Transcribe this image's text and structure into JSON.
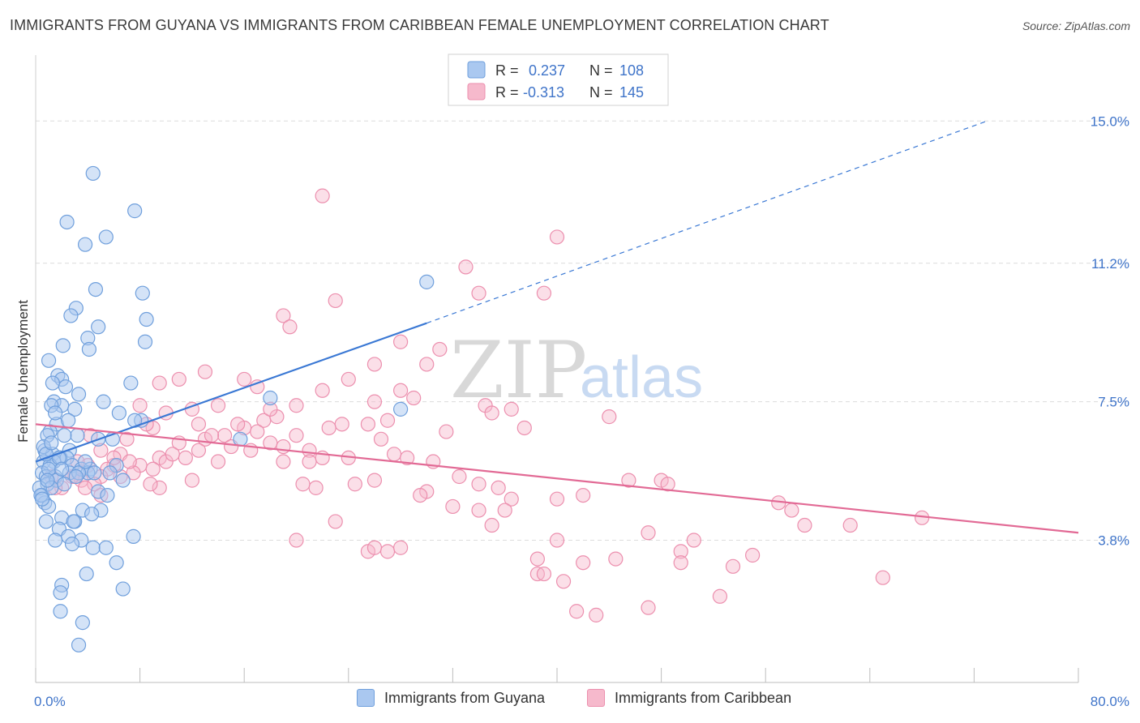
{
  "title": "IMMIGRANTS FROM GUYANA VS IMMIGRANTS FROM CARIBBEAN FEMALE UNEMPLOYMENT CORRELATION CHART",
  "source": "Source: ZipAtlas.com",
  "watermark": {
    "zip": "ZIP",
    "atlas": "atlas"
  },
  "colors": {
    "blue_fill": "#aac8f0",
    "blue_stroke": "#6f9fdc",
    "blue_line": "#3a78d4",
    "pink_fill": "#f6b9cc",
    "pink_stroke": "#ec8fae",
    "pink_line": "#e26a95",
    "axis_text": "#3f74c9",
    "grid": "#dcdcdc"
  },
  "legend": {
    "r_label": "R =",
    "n_label": "N =",
    "rows": [
      {
        "r": "0.237",
        "n": "108"
      },
      {
        "r": "-0.313",
        "n": "145"
      }
    ]
  },
  "chart_data": {
    "type": "scatter",
    "title": "IMMIGRANTS FROM GUYANA VS IMMIGRANTS FROM CARIBBEAN FEMALE UNEMPLOYMENT CORRELATION CHART",
    "ylabel": "Female Unemployment",
    "x_tick_labels": [
      "0.0%",
      "80.0%"
    ],
    "y_tick_labels": [
      "15.0%",
      "11.2%",
      "7.5%",
      "3.8%"
    ],
    "y_ticks": [
      15.0,
      11.2,
      7.5,
      3.8
    ],
    "xlim": [
      0,
      80
    ],
    "ylim": [
      0,
      16.5
    ],
    "grid": true,
    "legend_position": "top-center",
    "series": [
      {
        "name": "Immigrants from Guyana",
        "color": "blue",
        "trend": {
          "x": [
            0,
            30
          ],
          "y": [
            5.9,
            9.6
          ],
          "dashed_to": {
            "x": 73,
            "y": 15.0
          }
        },
        "points": [
          [
            4.4,
            13.6
          ],
          [
            7.6,
            12.6
          ],
          [
            2.4,
            12.3
          ],
          [
            5.4,
            11.9
          ],
          [
            3.8,
            11.7
          ],
          [
            4.6,
            10.5
          ],
          [
            8.2,
            10.4
          ],
          [
            3.1,
            10.0
          ],
          [
            2.7,
            9.8
          ],
          [
            8.5,
            9.7
          ],
          [
            4.8,
            9.5
          ],
          [
            4.0,
            9.2
          ],
          [
            8.4,
            9.1
          ],
          [
            2.1,
            9.0
          ],
          [
            4.1,
            8.9
          ],
          [
            1.0,
            8.6
          ],
          [
            1.7,
            8.2
          ],
          [
            2.0,
            8.1
          ],
          [
            7.3,
            8.0
          ],
          [
            1.3,
            8.0
          ],
          [
            2.3,
            7.9
          ],
          [
            3.3,
            7.7
          ],
          [
            1.4,
            7.5
          ],
          [
            5.2,
            7.5
          ],
          [
            18.0,
            7.6
          ],
          [
            2.0,
            7.4
          ],
          [
            1.2,
            7.4
          ],
          [
            3.0,
            7.3
          ],
          [
            28.0,
            7.3
          ],
          [
            6.4,
            7.2
          ],
          [
            8.1,
            7.0
          ],
          [
            7.6,
            7.0
          ],
          [
            1.6,
            6.9
          ],
          [
            1.1,
            6.7
          ],
          [
            0.9,
            6.6
          ],
          [
            3.2,
            6.6
          ],
          [
            4.8,
            6.5
          ],
          [
            5.9,
            6.5
          ],
          [
            15.7,
            6.5
          ],
          [
            0.7,
            6.2
          ],
          [
            2.6,
            6.2
          ],
          [
            1.3,
            6.1
          ],
          [
            1.9,
            6.0
          ],
          [
            2.4,
            6.0
          ],
          [
            1.4,
            5.9
          ],
          [
            0.6,
            5.9
          ],
          [
            1.1,
            5.8
          ],
          [
            2.8,
            5.8
          ],
          [
            3.5,
            5.7
          ],
          [
            4.2,
            5.7
          ],
          [
            6.2,
            5.8
          ],
          [
            0.5,
            5.6
          ],
          [
            4.0,
            5.6
          ],
          [
            2.6,
            5.6
          ],
          [
            0.8,
            5.5
          ],
          [
            1.5,
            5.5
          ],
          [
            3.3,
            5.6
          ],
          [
            6.7,
            5.4
          ],
          [
            0.9,
            5.3
          ],
          [
            1.6,
            5.4
          ],
          [
            4.8,
            5.1
          ],
          [
            0.5,
            5.0
          ],
          [
            5.5,
            5.0
          ],
          [
            0.7,
            4.8
          ],
          [
            1.0,
            4.7
          ],
          [
            5.0,
            4.6
          ],
          [
            3.6,
            4.6
          ],
          [
            4.3,
            4.5
          ],
          [
            2.0,
            4.4
          ],
          [
            0.8,
            4.3
          ],
          [
            3.0,
            4.3
          ],
          [
            1.8,
            4.1
          ],
          [
            2.5,
            3.9
          ],
          [
            7.5,
            3.9
          ],
          [
            3.5,
            3.8
          ],
          [
            1.5,
            3.8
          ],
          [
            2.8,
            3.7
          ],
          [
            4.4,
            3.6
          ],
          [
            5.4,
            3.6
          ],
          [
            6.2,
            3.2
          ],
          [
            3.9,
            2.9
          ],
          [
            2.0,
            2.6
          ],
          [
            1.9,
            2.4
          ],
          [
            6.7,
            2.5
          ],
          [
            1.9,
            1.9
          ],
          [
            3.6,
            1.6
          ],
          [
            3.3,
            1.0
          ],
          [
            1.2,
            5.2
          ],
          [
            2.2,
            5.3
          ],
          [
            0.3,
            5.2
          ],
          [
            0.4,
            5.0
          ],
          [
            2.9,
            4.3
          ],
          [
            1.0,
            5.7
          ],
          [
            3.8,
            5.9
          ],
          [
            0.6,
            6.3
          ],
          [
            1.8,
            6.0
          ],
          [
            4.5,
            5.6
          ],
          [
            2.2,
            6.6
          ],
          [
            0.9,
            5.4
          ],
          [
            3.1,
            5.5
          ],
          [
            1.5,
            7.2
          ],
          [
            2.5,
            7.0
          ],
          [
            0.8,
            6.1
          ],
          [
            1.2,
            6.4
          ],
          [
            5.7,
            5.6
          ],
          [
            2.0,
            5.7
          ],
          [
            0.5,
            4.9
          ],
          [
            30.0,
            10.7
          ]
        ]
      },
      {
        "name": "Immigrants from Caribbean",
        "color": "pink",
        "trend": {
          "x": [
            0,
            80
          ],
          "y": [
            6.9,
            4.0
          ]
        },
        "points": [
          [
            22.0,
            13.0
          ],
          [
            40.0,
            11.9
          ],
          [
            33.0,
            11.1
          ],
          [
            39.0,
            10.4
          ],
          [
            34.0,
            10.4
          ],
          [
            23.0,
            10.2
          ],
          [
            19.0,
            9.8
          ],
          [
            19.5,
            9.5
          ],
          [
            31.0,
            8.9
          ],
          [
            28.0,
            9.1
          ],
          [
            30.0,
            8.5
          ],
          [
            26.0,
            8.5
          ],
          [
            24.0,
            8.1
          ],
          [
            13.0,
            8.3
          ],
          [
            16.0,
            8.1
          ],
          [
            11.0,
            8.1
          ],
          [
            9.5,
            8.0
          ],
          [
            17.0,
            7.9
          ],
          [
            22.0,
            7.8
          ],
          [
            28.0,
            7.8
          ],
          [
            29.0,
            7.6
          ],
          [
            26.0,
            7.5
          ],
          [
            34.5,
            7.4
          ],
          [
            36.5,
            7.3
          ],
          [
            12.0,
            7.3
          ],
          [
            8.0,
            7.4
          ],
          [
            10.0,
            7.2
          ],
          [
            35.0,
            7.2
          ],
          [
            17.5,
            7.0
          ],
          [
            27.0,
            7.0
          ],
          [
            12.5,
            6.9
          ],
          [
            9.0,
            6.8
          ],
          [
            16.0,
            6.8
          ],
          [
            17.0,
            6.7
          ],
          [
            14.5,
            6.6
          ],
          [
            13.0,
            6.5
          ],
          [
            18.0,
            6.4
          ],
          [
            20.0,
            6.6
          ],
          [
            19.0,
            6.3
          ],
          [
            37.5,
            6.8
          ],
          [
            22.5,
            6.8
          ],
          [
            15.0,
            6.3
          ],
          [
            21.0,
            6.2
          ],
          [
            11.5,
            6.0
          ],
          [
            27.5,
            6.1
          ],
          [
            28.5,
            6.0
          ],
          [
            5.0,
            6.2
          ],
          [
            6.5,
            6.1
          ],
          [
            9.5,
            6.0
          ],
          [
            10.0,
            5.9
          ],
          [
            4.0,
            5.8
          ],
          [
            6.0,
            5.8
          ],
          [
            8.0,
            5.8
          ],
          [
            9.0,
            5.7
          ],
          [
            5.5,
            5.7
          ],
          [
            7.5,
            5.6
          ],
          [
            14.0,
            5.9
          ],
          [
            19.0,
            5.9
          ],
          [
            21.0,
            5.9
          ],
          [
            24.0,
            6.0
          ],
          [
            3.0,
            5.5
          ],
          [
            3.5,
            5.4
          ],
          [
            5.0,
            5.5
          ],
          [
            6.5,
            5.5
          ],
          [
            12.0,
            5.4
          ],
          [
            20.5,
            5.3
          ],
          [
            21.5,
            5.2
          ],
          [
            24.5,
            5.3
          ],
          [
            26.0,
            5.4
          ],
          [
            30.0,
            5.1
          ],
          [
            32.5,
            5.5
          ],
          [
            34.0,
            5.3
          ],
          [
            35.5,
            5.2
          ],
          [
            29.5,
            5.0
          ],
          [
            36.5,
            4.9
          ],
          [
            42.0,
            5.0
          ],
          [
            45.5,
            5.4
          ],
          [
            48.0,
            5.4
          ],
          [
            48.5,
            5.3
          ],
          [
            4.5,
            5.3
          ],
          [
            2.0,
            5.2
          ],
          [
            3.8,
            5.2
          ],
          [
            5.0,
            5.0
          ],
          [
            2.8,
            5.5
          ],
          [
            1.5,
            5.2
          ],
          [
            1.2,
            5.5
          ],
          [
            9.5,
            5.2
          ],
          [
            32.0,
            4.7
          ],
          [
            34.0,
            4.6
          ],
          [
            40.0,
            4.9
          ],
          [
            57.0,
            4.8
          ],
          [
            58.0,
            4.6
          ],
          [
            68.0,
            4.4
          ],
          [
            23.0,
            4.3
          ],
          [
            35.0,
            4.2
          ],
          [
            59.0,
            4.2
          ],
          [
            62.5,
            4.2
          ],
          [
            47.0,
            4.0
          ],
          [
            20.0,
            3.8
          ],
          [
            40.0,
            3.8
          ],
          [
            50.5,
            3.8
          ],
          [
            49.5,
            3.5
          ],
          [
            25.5,
            3.5
          ],
          [
            26.0,
            3.6
          ],
          [
            27.0,
            3.5
          ],
          [
            28.0,
            3.6
          ],
          [
            38.5,
            3.3
          ],
          [
            55.0,
            3.4
          ],
          [
            42.0,
            3.2
          ],
          [
            44.5,
            3.3
          ],
          [
            49.5,
            3.2
          ],
          [
            53.5,
            3.1
          ],
          [
            38.5,
            2.9
          ],
          [
            39.0,
            2.9
          ],
          [
            40.5,
            2.7
          ],
          [
            65.0,
            2.8
          ],
          [
            52.5,
            2.3
          ],
          [
            47.0,
            2.0
          ],
          [
            41.5,
            1.9
          ],
          [
            43.0,
            1.8
          ],
          [
            8.5,
            6.9
          ],
          [
            11.0,
            6.4
          ],
          [
            15.5,
            6.9
          ],
          [
            14.0,
            7.4
          ],
          [
            18.5,
            7.1
          ],
          [
            20.0,
            7.4
          ],
          [
            23.5,
            6.9
          ],
          [
            25.5,
            6.9
          ],
          [
            30.5,
            5.9
          ],
          [
            31.5,
            6.7
          ],
          [
            10.5,
            6.1
          ],
          [
            7.0,
            6.5
          ],
          [
            13.5,
            6.6
          ],
          [
            22.0,
            6.0
          ],
          [
            4.2,
            6.6
          ],
          [
            3.2,
            5.9
          ],
          [
            6.0,
            6.0
          ],
          [
            12.5,
            6.2
          ],
          [
            7.2,
            5.9
          ],
          [
            16.5,
            6.2
          ],
          [
            36.0,
            4.6
          ],
          [
            44.0,
            7.1
          ],
          [
            18.0,
            7.3
          ],
          [
            26.5,
            6.5
          ],
          [
            8.8,
            5.3
          ]
        ]
      }
    ]
  }
}
